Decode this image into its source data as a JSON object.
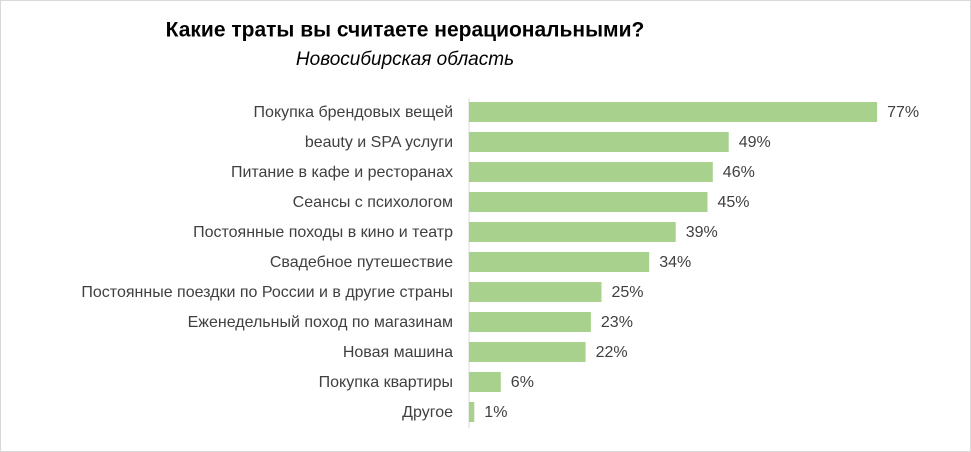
{
  "chart_data": {
    "type": "bar",
    "orientation": "horizontal",
    "title": "Какие траты вы считаете нерациональными?",
    "subtitle": "Новосибирская область",
    "categories": [
      "Покупка брендовых вещей",
      "beauty и SPA услуги",
      "Питание в кафе и ресторанах",
      "Сеансы с психологом",
      "Постоянные походы в кино и театр",
      "Свадебное путешествие",
      "Постоянные поездки по России и в другие страны",
      "Еженедельный поход по магазинам",
      "Новая машина",
      "Покупка квартиры",
      "Другое"
    ],
    "values": [
      77,
      49,
      46,
      45,
      39,
      34,
      25,
      23,
      22,
      6,
      1
    ],
    "value_labels": [
      "77%",
      "49%",
      "46%",
      "45%",
      "39%",
      "34%",
      "25%",
      "23%",
      "22%",
      "6%",
      "1%"
    ],
    "color": "#a9d18e"
  }
}
